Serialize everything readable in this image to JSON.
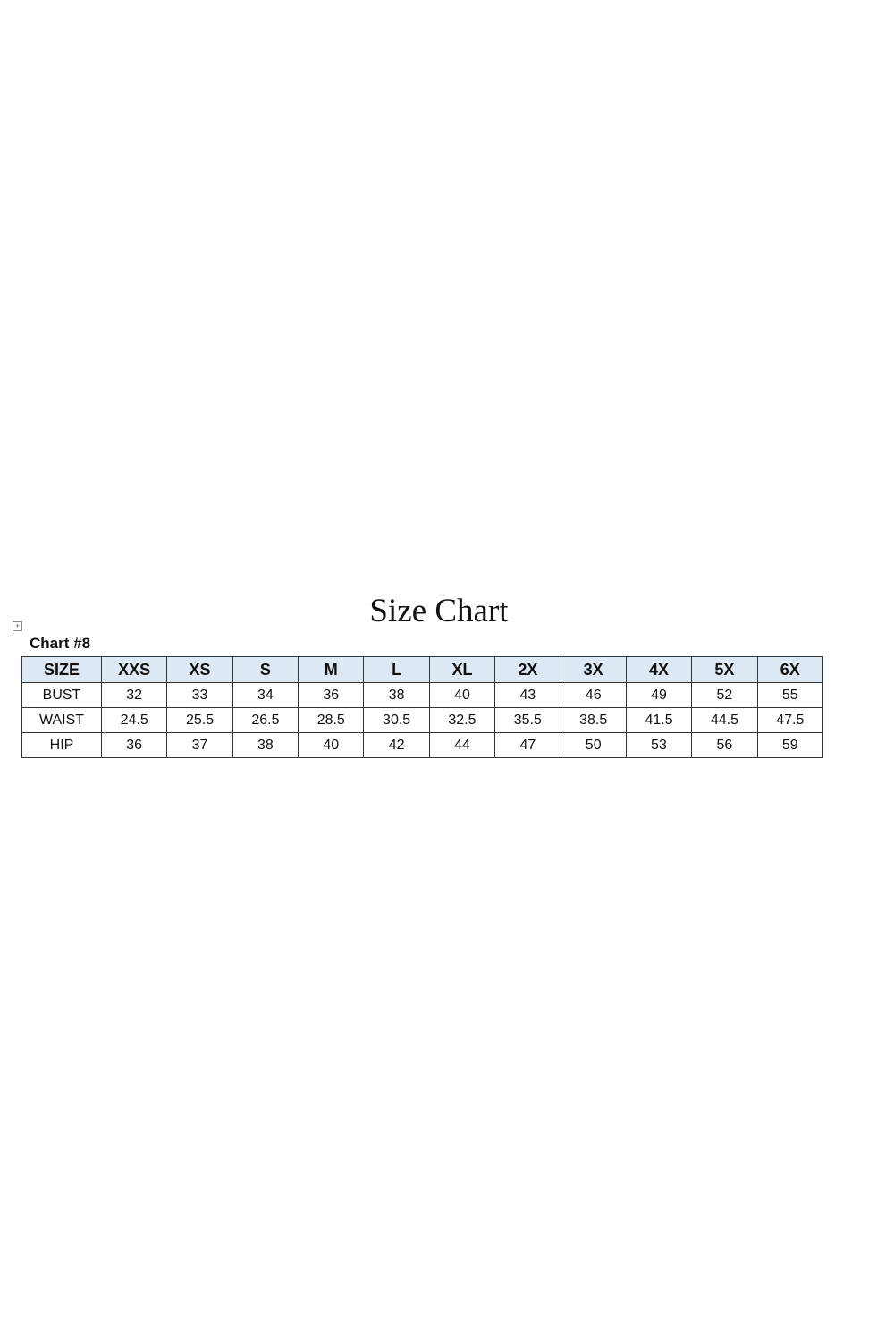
{
  "title": "Size Chart",
  "chart_label": "Chart #8",
  "table": {
    "header": [
      "SIZE",
      "XXS",
      "XS",
      "S",
      "M",
      "L",
      "XL",
      "2X",
      "3X",
      "4X",
      "5X",
      "6X"
    ],
    "rows": [
      [
        "BUST",
        "32",
        "33",
        "34",
        "36",
        "38",
        "40",
        "43",
        "46",
        "49",
        "52",
        "55"
      ],
      [
        "WAIST",
        "24.5",
        "25.5",
        "26.5",
        "28.5",
        "30.5",
        "32.5",
        "35.5",
        "38.5",
        "41.5",
        "44.5",
        "47.5"
      ],
      [
        "HIP",
        "36",
        "37",
        "38",
        "40",
        "42",
        "44",
        "47",
        "50",
        "53",
        "56",
        "59"
      ]
    ]
  },
  "colors": {
    "header_bg": "#dce9f5",
    "border": "#333333"
  }
}
